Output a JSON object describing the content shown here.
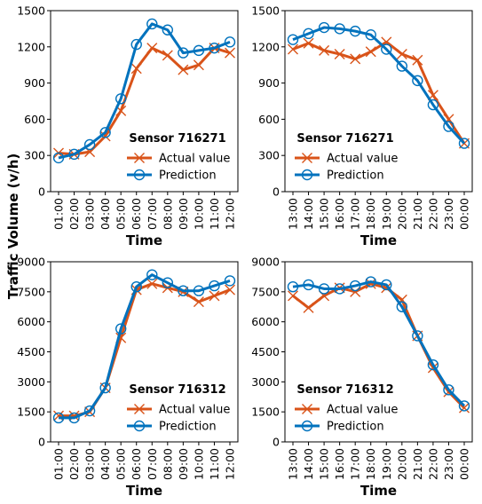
{
  "figure": {
    "ylabel": "Traffic Volume (v/h)"
  },
  "legend": {
    "actual_label": "Actual value",
    "prediction_label": "Prediction"
  },
  "colors": {
    "actual": "#d95319",
    "prediction": "#0072bd"
  },
  "chart_data": [
    {
      "type": "line",
      "title": "Sensor 716271",
      "xlabel": "Time",
      "ylim": [
        0,
        1500
      ],
      "yticks": [
        0,
        300,
        600,
        900,
        1200,
        1500
      ],
      "categories": [
        "01:00",
        "02:00",
        "03:00",
        "04:00",
        "05:00",
        "06:00",
        "07:00",
        "08:00",
        "09:00",
        "10:00",
        "11:00",
        "12:00"
      ],
      "series": [
        {
          "name": "Actual value",
          "marker": "x",
          "values": [
            320,
            310,
            330,
            460,
            670,
            1020,
            1190,
            1130,
            1010,
            1050,
            1190,
            1150
          ]
        },
        {
          "name": "Prediction",
          "marker": "o",
          "values": [
            280,
            310,
            390,
            490,
            770,
            1220,
            1390,
            1340,
            1150,
            1170,
            1190,
            1240
          ]
        }
      ],
      "legend_position": "lower-right"
    },
    {
      "type": "line",
      "title": "Sensor 716271",
      "xlabel": "Time",
      "ylim": [
        0,
        1500
      ],
      "yticks": [
        0,
        300,
        600,
        900,
        1200,
        1500
      ],
      "categories": [
        "13:00",
        "14:00",
        "15:00",
        "16:00",
        "17:00",
        "18:00",
        "19:00",
        "20:00",
        "21:00",
        "22:00",
        "23:00",
        "00:00"
      ],
      "series": [
        {
          "name": "Actual value",
          "marker": "x",
          "values": [
            1180,
            1230,
            1170,
            1140,
            1100,
            1160,
            1240,
            1140,
            1090,
            800,
            600,
            400
          ]
        },
        {
          "name": "Prediction",
          "marker": "o",
          "values": [
            1260,
            1310,
            1360,
            1350,
            1330,
            1300,
            1180,
            1040,
            920,
            720,
            540,
            400
          ]
        }
      ],
      "legend_position": "lower-left"
    },
    {
      "type": "line",
      "title": "Sensor 716312",
      "xlabel": "Time",
      "ylim": [
        0,
        9000
      ],
      "yticks": [
        0,
        1500,
        3000,
        4500,
        6000,
        7500,
        9000
      ],
      "categories": [
        "01:00",
        "02:00",
        "03:00",
        "04:00",
        "05:00",
        "06:00",
        "07:00",
        "08:00",
        "09:00",
        "10:00",
        "11:00",
        "12:00"
      ],
      "series": [
        {
          "name": "Actual value",
          "marker": "x",
          "values": [
            1300,
            1300,
            1500,
            2700,
            5200,
            7600,
            7900,
            7700,
            7500,
            7000,
            7300,
            7600
          ]
        },
        {
          "name": "Prediction",
          "marker": "o",
          "values": [
            1200,
            1200,
            1550,
            2700,
            5650,
            7750,
            8350,
            7950,
            7550,
            7550,
            7800,
            8050
          ]
        }
      ],
      "legend_position": "lower-right"
    },
    {
      "type": "line",
      "title": "Sensor 716312",
      "xlabel": "Time",
      "ylim": [
        0,
        9000
      ],
      "yticks": [
        0,
        1500,
        3000,
        4500,
        6000,
        7500,
        9000
      ],
      "categories": [
        "13:00",
        "14:00",
        "15:00",
        "16:00",
        "17:00",
        "18:00",
        "19:00",
        "20:00",
        "21:00",
        "22:00",
        "23:00",
        "00:00"
      ],
      "series": [
        {
          "name": "Actual value",
          "marker": "x",
          "values": [
            7300,
            6700,
            7300,
            7700,
            7500,
            7900,
            7700,
            7100,
            5300,
            3700,
            2500,
            1700
          ]
        },
        {
          "name": "Prediction",
          "marker": "o",
          "values": [
            7750,
            7850,
            7650,
            7650,
            7800,
            8000,
            7850,
            6750,
            5300,
            3850,
            2600,
            1800
          ]
        }
      ],
      "legend_position": "lower-left"
    }
  ]
}
